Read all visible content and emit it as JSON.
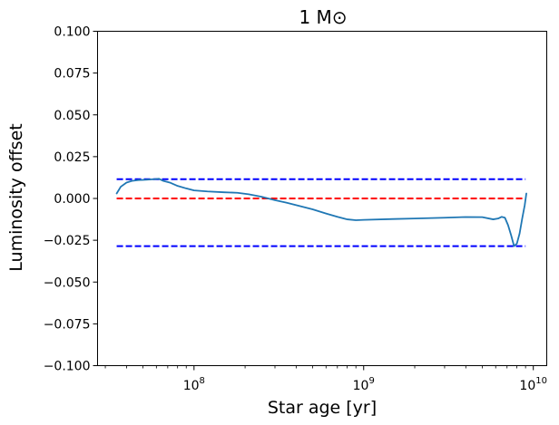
{
  "chart_data": {
    "type": "line",
    "title": "1 M⊙",
    "xlabel": "Star age [yr]",
    "ylabel": "Luminosity offset",
    "xscale": "log",
    "xlim": [
      27000000,
      12000000000
    ],
    "ylim": [
      -0.1,
      0.1
    ],
    "grid": false,
    "xticks": [
      {
        "value": 100000000,
        "base": "10",
        "exp": "8"
      },
      {
        "value": 1000000000,
        "base": "10",
        "exp": "9"
      },
      {
        "value": 10000000000,
        "base": "10",
        "exp": "10"
      }
    ],
    "yticks": [
      {
        "value": 0.1,
        "label": "0.100"
      },
      {
        "value": 0.075,
        "label": "0.075"
      },
      {
        "value": 0.05,
        "label": "0.050"
      },
      {
        "value": 0.025,
        "label": "0.025"
      },
      {
        "value": 0.0,
        "label": "0.000"
      },
      {
        "value": -0.025,
        "label": "−0.025"
      },
      {
        "value": -0.05,
        "label": "−0.050"
      },
      {
        "value": -0.075,
        "label": "−0.075"
      },
      {
        "value": -0.1,
        "label": "−0.100"
      }
    ],
    "reference_lines": [
      {
        "y": 0.0115,
        "x": [
          35000000,
          9000000000
        ],
        "color": "#0000ff",
        "style": "dashed"
      },
      {
        "y": 0.0,
        "x": [
          35000000,
          9000000000
        ],
        "color": "#ff0000",
        "style": "dashed"
      },
      {
        "y": -0.0285,
        "x": [
          35000000,
          9000000000
        ],
        "color": "#0000ff",
        "style": "dashed"
      }
    ],
    "series": [
      {
        "color": "#1f77b4",
        "points": [
          [
            35000000,
            0.003
          ],
          [
            37000000,
            0.007
          ],
          [
            40000000,
            0.0095
          ],
          [
            43000000,
            0.0105
          ],
          [
            47000000,
            0.011
          ],
          [
            52000000,
            0.0112
          ],
          [
            58000000,
            0.0115
          ],
          [
            62000000,
            0.0118
          ],
          [
            66000000,
            0.0105
          ],
          [
            72000000,
            0.0095
          ],
          [
            80000000,
            0.0075
          ],
          [
            90000000,
            0.006
          ],
          [
            100000000,
            0.0048
          ],
          [
            120000000,
            0.0042
          ],
          [
            150000000,
            0.0037
          ],
          [
            180000000,
            0.0034
          ],
          [
            210000000,
            0.0025
          ],
          [
            250000000,
            0.001
          ],
          [
            300000000,
            -0.001
          ],
          [
            350000000,
            -0.0025
          ],
          [
            400000000,
            -0.004
          ],
          [
            500000000,
            -0.0065
          ],
          [
            600000000,
            -0.009
          ],
          [
            700000000,
            -0.011
          ],
          [
            800000000,
            -0.0125
          ],
          [
            900000000,
            -0.013
          ],
          [
            1000000000,
            -0.0128
          ],
          [
            1500000000,
            -0.0123
          ],
          [
            2000000000,
            -0.012
          ],
          [
            3000000000,
            -0.0115
          ],
          [
            4000000000,
            -0.0111
          ],
          [
            5000000000,
            -0.0112
          ],
          [
            5800000000,
            -0.0125
          ],
          [
            6200000000,
            -0.012
          ],
          [
            6500000000,
            -0.011
          ],
          [
            6800000000,
            -0.0115
          ],
          [
            7100000000,
            -0.016
          ],
          [
            7400000000,
            -0.022
          ],
          [
            7700000000,
            -0.0285
          ],
          [
            8000000000,
            -0.027
          ],
          [
            8300000000,
            -0.021
          ],
          [
            8600000000,
            -0.012
          ],
          [
            8900000000,
            -0.004
          ],
          [
            9100000000,
            0.003
          ]
        ]
      }
    ]
  }
}
